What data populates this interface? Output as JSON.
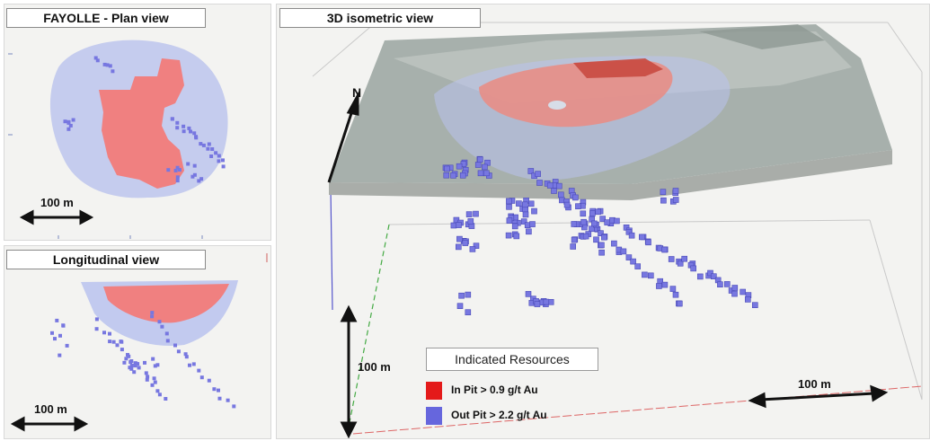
{
  "panels": {
    "plan": {
      "title": "FAYOLLE - Plan view",
      "scale_label": "100 m"
    },
    "longitudinal": {
      "title": "Longitudinal view",
      "scale_label": "100 m"
    },
    "isometric": {
      "title": "3D isometric view",
      "north_label": "N",
      "scale_vertical_label": "100 m",
      "scale_horizontal_label": "100 m"
    }
  },
  "legend": {
    "title": "Indicated Resources",
    "items": [
      {
        "label": "In Pit > 0.9 g/t Au",
        "color": "#e41a1a"
      },
      {
        "label": "Out Pit > 2.2 g/t Au",
        "color": "#6666dd"
      }
    ]
  },
  "colors": {
    "in_pit_block": "#f08080",
    "out_pit_block": "#7777e0",
    "out_pit_block_dark": "#4a4ab8",
    "halo": "#b9c2ee",
    "terrain": "#9fa8a4"
  }
}
